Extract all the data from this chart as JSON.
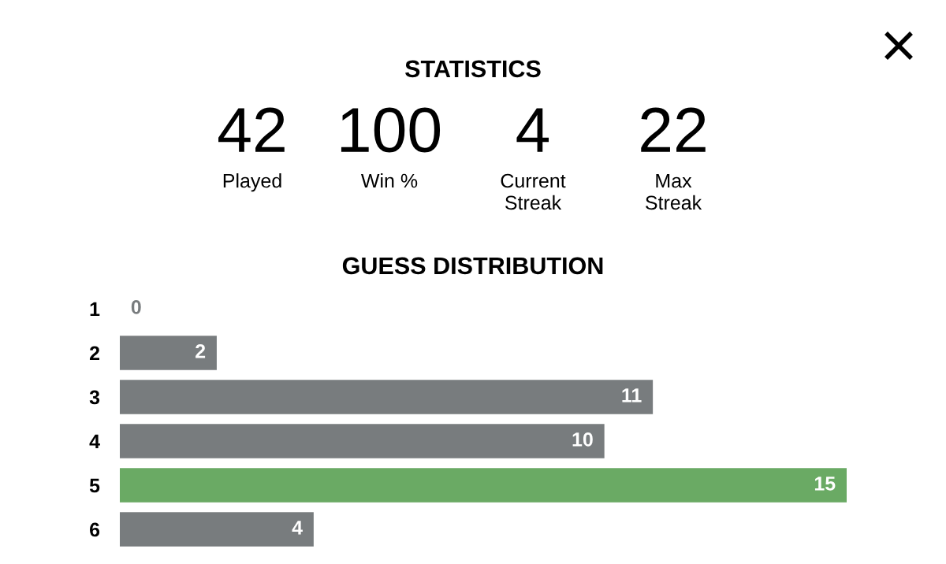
{
  "chart_data": [
    {
      "type": "other",
      "title": "STATISTICS",
      "annotations": [
        "42",
        "Played",
        "100",
        "Win %",
        "4",
        "Current\nStreak",
        "22",
        "Max\nStreak"
      ]
    },
    {
      "type": "bar",
      "orientation": "horizontal",
      "title": "GUESS DISTRIBUTION",
      "categories": [
        "1",
        "2",
        "3",
        "4",
        "5",
        "6"
      ],
      "values": [
        0,
        2,
        11,
        10,
        15,
        4
      ],
      "colors": [
        "#787c7e",
        "#787c7e",
        "#787c7e",
        "#787c7e",
        "#6aaa64",
        "#787c7e"
      ],
      "data_labels": true
    }
  ]
}
